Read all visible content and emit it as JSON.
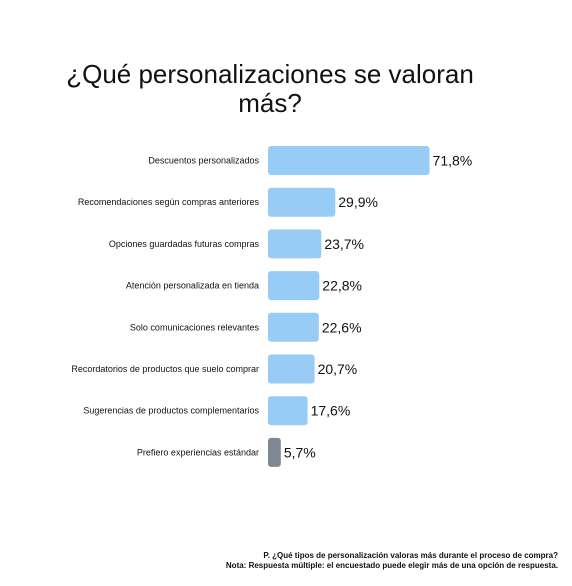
{
  "chart_data": {
    "type": "bar",
    "orientation": "horizontal",
    "title": "¿Qué personalizaciones se valoran más?",
    "categories": [
      "Descuentos personalizados",
      "Recomendaciones según compras anteriores",
      "Opciones guardadas futuras compras",
      "Atención personalizada en tienda",
      "Solo comunicaciones relevantes",
      "Recordatorios de productos que suelo comprar",
      "Sugerencias de productos complementarios",
      "Prefiero experiencias estándar"
    ],
    "values": [
      71.8,
      29.9,
      23.7,
      22.8,
      22.6,
      20.7,
      17.6,
      5.7
    ],
    "value_labels": [
      "71,8%",
      "29,9%",
      "23,7%",
      "22,8%",
      "22,6%",
      "20,7%",
      "17,6%",
      "5,7%"
    ],
    "bar_colors": [
      "#99ccf5",
      "#99ccf5",
      "#99ccf5",
      "#99ccf5",
      "#99ccf5",
      "#99ccf5",
      "#99ccf5",
      "#7f8891"
    ],
    "xlim": [
      0,
      72
    ],
    "grid": false,
    "legend": "none"
  },
  "footnote": {
    "question": "P. ¿Qué tipos de personalización valoras más durante el proceso de compra?",
    "note": "Nota: Respuesta múltiple: el encuestado puede elegir más de una opción de respuesta."
  }
}
